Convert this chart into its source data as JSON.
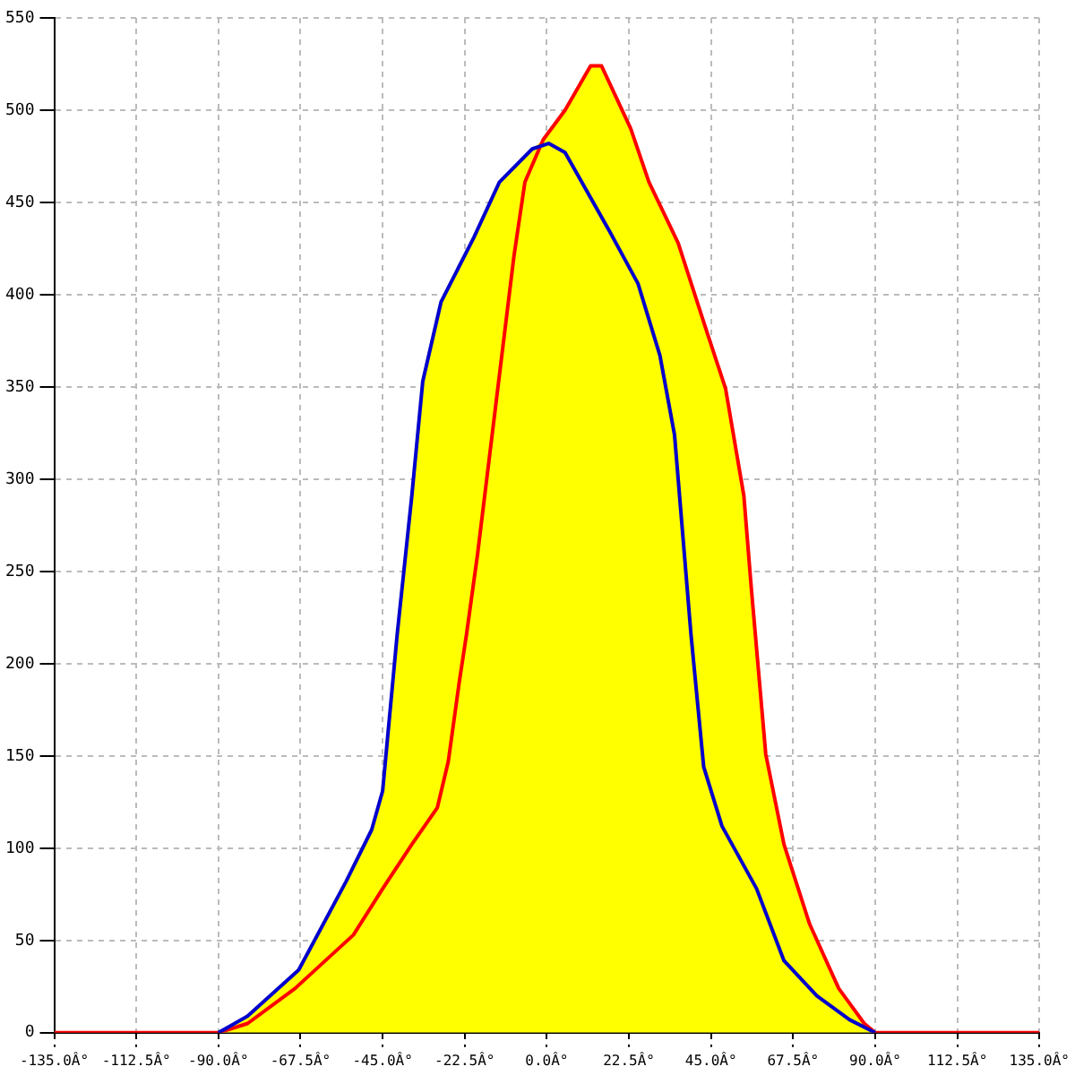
{
  "chart_data": {
    "type": "area",
    "xlim": [
      -135,
      135
    ],
    "ylim": [
      0,
      550
    ],
    "xticks": [
      {
        "value": -135,
        "label": "-135.0Â°"
      },
      {
        "value": -112.5,
        "label": "-112.5Â°"
      },
      {
        "value": -90,
        "label": "-90.0Â°"
      },
      {
        "value": -67.5,
        "label": "-67.5Â°"
      },
      {
        "value": -45,
        "label": "-45.0Â°"
      },
      {
        "value": -22.5,
        "label": "-22.5Â°"
      },
      {
        "value": 0,
        "label": "0.0Â°"
      },
      {
        "value": 22.5,
        "label": "22.5Â°"
      },
      {
        "value": 45,
        "label": "45.0Â°"
      },
      {
        "value": 67.5,
        "label": "67.5Â°"
      },
      {
        "value": 90,
        "label": "90.0Â°"
      },
      {
        "value": 112.5,
        "label": "112.5Â°"
      },
      {
        "value": 135,
        "label": "135.0Â°"
      }
    ],
    "yticks": [
      0,
      50,
      100,
      150,
      200,
      250,
      300,
      350,
      400,
      450,
      500,
      550
    ],
    "grid": true,
    "legend": false,
    "marker": "none",
    "line_style": "solid",
    "series": [
      {
        "type": "line",
        "color": "#0000cc",
        "x": [
          -90,
          -82,
          -68,
          -55,
          -48,
          -45,
          -41,
          -37,
          -34,
          -29,
          -20,
          -13,
          -4,
          0.5,
          5,
          17,
          25,
          31,
          35,
          39.5,
          43,
          48,
          57.5,
          65,
          74,
          83,
          89,
          90
        ],
        "values": [
          0,
          9,
          34,
          82,
          110,
          131,
          216,
          291,
          353,
          396,
          431,
          461,
          479,
          482,
          477,
          435,
          406,
          367,
          324,
          216,
          144,
          112,
          78,
          39,
          20,
          7,
          1,
          0
        ]
      },
      {
        "type": "line",
        "color": "#ff0000",
        "x": [
          -135,
          -90,
          -82,
          -69,
          -53,
          -45,
          -37,
          -30,
          -27,
          -24,
          -22,
          -19,
          -14,
          -9,
          -6,
          -1,
          5,
          12,
          15,
          23,
          28,
          36,
          44,
          49,
          54,
          56,
          60,
          65,
          72,
          80,
          87,
          90,
          135
        ],
        "values": [
          0,
          0,
          5,
          24,
          53,
          78,
          102,
          122,
          147,
          190,
          216,
          259,
          340,
          421,
          461,
          484,
          500,
          524,
          524,
          490,
          461,
          428,
          379,
          349,
          291,
          242,
          151,
          102,
          59,
          24,
          5,
          0,
          0
        ]
      },
      {
        "type": "area",
        "color": "#ffff00",
        "x": [
          -90,
          -82,
          -68,
          -55,
          -48,
          -45,
          -41,
          -37,
          -34,
          -29,
          -20,
          -13,
          -4,
          -1,
          5,
          12,
          15,
          23,
          28,
          36,
          44,
          49,
          54,
          56,
          60,
          65,
          72,
          80,
          87,
          90
        ],
        "values": [
          0,
          9,
          34,
          82,
          110,
          131,
          216,
          291,
          353,
          396,
          431,
          461,
          479,
          484,
          500,
          524,
          524,
          490,
          461,
          428,
          379,
          349,
          291,
          242,
          151,
          102,
          59,
          24,
          5,
          0
        ]
      }
    ]
  }
}
